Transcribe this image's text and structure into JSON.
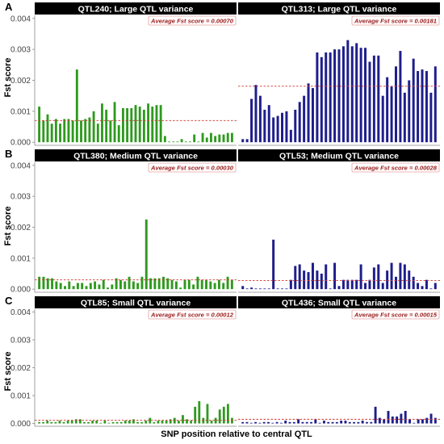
{
  "figure": {
    "xlabel": "SNP position relative to central QTL",
    "ylabel": "Fst score",
    "colors": {
      "green": "#2e9a1e",
      "blue": "#1e1e8c",
      "avg_line": "#d0342c",
      "avg_text": "#9b1b1b",
      "strip": "#000000"
    },
    "rows": [
      {
        "letter": "A"
      },
      {
        "letter": "B"
      },
      {
        "letter": "C"
      }
    ]
  },
  "chart_data": [
    {
      "type": "bar",
      "title": "QTL240; Large QTL variance",
      "annotation": "Average Fst score = 0.00070",
      "average": 0.0007,
      "color": "green",
      "ylim": [
        -0.0001,
        0.0041
      ],
      "yticks": [
        "0.000",
        "0.001",
        "0.002",
        "0.003",
        "0.004"
      ],
      "ylabel": "Fst score",
      "values": [
        0.00115,
        0.0007,
        0.0009,
        0.0006,
        0.00075,
        0.0006,
        0.00075,
        0.00075,
        0.0007,
        0.00235,
        0.0007,
        0.00075,
        0.0008,
        0.001,
        0.0006,
        0.00125,
        0.00105,
        0.0007,
        0.0013,
        0.00055,
        0.0011,
        0.0011,
        0.0011,
        0.0012,
        0.00115,
        0.00105,
        0.00125,
        0.00115,
        0.0012,
        0.0012,
        0.0002,
        0,
        0,
        0,
        0.0001,
        0,
        0,
        0.00025,
        0,
        0.0003,
        0.00015,
        0.0003,
        0.0002,
        0.00025,
        0.00025,
        0.0003,
        0.0003
      ]
    },
    {
      "type": "bar",
      "title": "QTL313; Large QTL variance",
      "annotation": "Average Fst score = 0.00181",
      "average": 0.00181,
      "color": "blue",
      "ylim": [
        -0.0001,
        0.0041
      ],
      "values": [
        0.0001,
        0.0001,
        0.0014,
        0.00185,
        0.0015,
        0.00105,
        0.0012,
        0.0008,
        0.00085,
        0.00095,
        0.001,
        0.0004,
        0.00105,
        0.0013,
        0.0015,
        0.0019,
        0.00175,
        0.0029,
        0.00275,
        0.0029,
        0.0029,
        0.003,
        0.003,
        0.0031,
        0.0033,
        0.0031,
        0.0032,
        0.00305,
        0.00305,
        0.0026,
        0.0028,
        0.0028,
        0.0015,
        0.0021,
        0.0018,
        0.00245,
        0.00295,
        0.0016,
        0.002,
        0.0027,
        0.0023,
        0.00235,
        0.0023,
        0.0016,
        0.00245
      ]
    },
    {
      "type": "bar",
      "title": "QTL380; Medium QTL variance",
      "annotation": "Average Fst score = 0.00030",
      "average": 0.0003,
      "color": "green",
      "ylim": [
        -0.0001,
        0.0041
      ],
      "yticks": [
        "0.000",
        "0.001",
        "0.002",
        "0.003",
        "0.004"
      ],
      "ylabel": "Fst score",
      "values": [
        0.0004,
        0.0004,
        0.00035,
        0.00035,
        0.00025,
        0.0002,
        0.0001,
        0.00025,
        0.0001,
        0.0002,
        0.0002,
        0.0001,
        0.0002,
        0.00025,
        0.00015,
        0.0003,
        5e-05,
        0.00015,
        0.00035,
        0.0003,
        0.00025,
        0.0004,
        0.00025,
        0.0002,
        0.0004,
        0.00225,
        0.00035,
        0.00035,
        0.00035,
        0.0004,
        0.00035,
        0.0003,
        0.00025,
        5e-05,
        0.0003,
        0.0003,
        0.00015,
        0.0004,
        0.0003,
        0.0003,
        0.00025,
        0.0002,
        0.0003,
        0.0002,
        0.0004,
        0.0003
      ]
    },
    {
      "type": "bar",
      "title": "QTL53; Medium QTL variance",
      "annotation": "Average Fst score = 0.00028",
      "average": 0.00028,
      "color": "blue",
      "ylim": [
        -0.0001,
        0.0041
      ],
      "values": [
        0.0001,
        0,
        5e-05,
        0,
        0,
        0,
        0,
        0.0016,
        0,
        0,
        0,
        0.0003,
        0.00075,
        0.0008,
        0.0006,
        0.00055,
        0.00085,
        0.0006,
        0.0005,
        0.0008,
        0,
        0.00085,
        0.0001,
        0.0003,
        0.0003,
        0.0003,
        0.0003,
        0.0008,
        0.0002,
        0.0003,
        0.0007,
        0.0008,
        0.0002,
        0.0006,
        0.00085,
        0.0004,
        0.00085,
        0.0008,
        0.0006,
        0.0004,
        0.0002,
        0.0001,
        0.0003,
        0,
        0.0002
      ]
    },
    {
      "type": "bar",
      "title": "QTL85; Small QTL variance",
      "annotation": "Average Fst score = 0.00012",
      "average": 0.00012,
      "color": "green",
      "ylim": [
        -0.0001,
        0.0041
      ],
      "yticks": [
        "0.000",
        "0.001",
        "0.002",
        "0.003",
        "0.004"
      ],
      "ylabel": "Fst score",
      "values": [
        5e-05,
        5e-05,
        0.0001,
        5e-05,
        5e-05,
        0.0001,
        5e-05,
        0.0001,
        0.0001,
        0.00015,
        0.00015,
        5e-05,
        5e-05,
        0.0001,
        0.0001,
        0,
        0.0001,
        0,
        5e-05,
        5e-05,
        5e-05,
        0.0001,
        0.0001,
        0.00015,
        5e-05,
        5e-05,
        0.0001,
        0.0002,
        5e-05,
        0.0001,
        0.0001,
        0.0001,
        0.00015,
        0.0002,
        0.0001,
        0.0003,
        0.00015,
        0.0001,
        0.0006,
        0.0008,
        0.0002,
        0.0007,
        0.0001,
        0.0002,
        0.0005,
        0.0006,
        0.0007,
        0.0002
      ]
    },
    {
      "type": "bar",
      "title": "QTL436; Small QTL variance",
      "annotation": "Average Fst score = 0.00015",
      "average": 0.00015,
      "color": "blue",
      "ylim": [
        -0.0001,
        0.0041
      ],
      "values": [
        5e-05,
        5e-05,
        0,
        5e-05,
        0,
        5e-05,
        5e-05,
        0,
        5e-05,
        0,
        0.0001,
        5e-05,
        5e-05,
        0.00015,
        5e-05,
        5e-05,
        5e-05,
        0.00015,
        0,
        0.0001,
        5e-05,
        5e-05,
        5e-05,
        0.0001,
        0.0001,
        5e-05,
        5e-05,
        5e-05,
        0.0001,
        5e-05,
        5e-05,
        0.0006,
        0.0002,
        0.00015,
        0.00045,
        0.00025,
        0.00025,
        0.00035,
        0.00045,
        0.00015,
        0,
        0.00015,
        0.00015,
        0.0002,
        0.00035,
        0.0002
      ]
    }
  ]
}
